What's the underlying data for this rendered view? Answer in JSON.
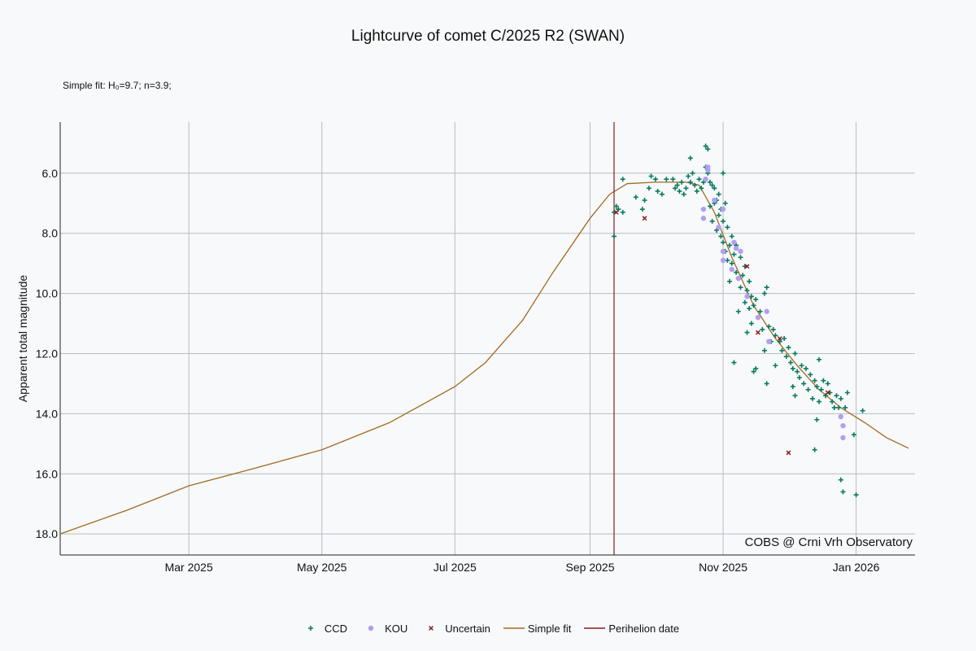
{
  "chart_data": {
    "type": "scatter",
    "title": "Lightcurve of comet C/2025 R2 (SWAN)",
    "annotation_top": "Simple fit: H₀=9.7; n=3.9;",
    "annotation_bottom_right": "COBS @ Crni Vrh Observatory",
    "ylabel": "Apparent total magnitude",
    "xlabel": "",
    "y_inverted": true,
    "ylim": [
      18.7,
      4.3
    ],
    "xlim": [
      "2025-01-01",
      "2026-01-28"
    ],
    "y_ticks": [
      6,
      8,
      10,
      12,
      14,
      16,
      18
    ],
    "y_tick_labels": [
      "6.0",
      "8.0",
      "10.0",
      "12.0",
      "14.0",
      "16.0",
      "18.0"
    ],
    "x_ticks": [
      "2025-03-01",
      "2025-05-01",
      "2025-07-01",
      "2025-09-01",
      "2025-11-01",
      "2026-01-01"
    ],
    "x_tick_labels": [
      "Mar 2025",
      "May 2025",
      "Jul 2025",
      "Sep 2025",
      "Nov 2025",
      "Jan 2026"
    ],
    "grid": true,
    "perihelion_date": "2025-09-12",
    "series": [
      {
        "name": "CCD",
        "marker": "plus",
        "color": "#0b7a5f",
        "points": [
          [
            "2025-09-12",
            7.3
          ],
          [
            "2025-09-12",
            8.1
          ],
          [
            "2025-09-13",
            7.1
          ],
          [
            "2025-09-14",
            7.2
          ],
          [
            "2025-09-16",
            7.3
          ],
          [
            "2025-09-16",
            6.2
          ],
          [
            "2025-09-22",
            6.8
          ],
          [
            "2025-09-25",
            7.2
          ],
          [
            "2025-09-26",
            6.9
          ],
          [
            "2025-09-28",
            6.5
          ],
          [
            "2025-09-29",
            6.1
          ],
          [
            "2025-10-01",
            6.2
          ],
          [
            "2025-10-02",
            6.6
          ],
          [
            "2025-10-04",
            6.7
          ],
          [
            "2025-10-06",
            6.2
          ],
          [
            "2025-10-09",
            6.2
          ],
          [
            "2025-10-10",
            6.5
          ],
          [
            "2025-10-11",
            6.4
          ],
          [
            "2025-10-12",
            6.6
          ],
          [
            "2025-10-13",
            6.3
          ],
          [
            "2025-10-14",
            6.7
          ],
          [
            "2025-10-15",
            6.5
          ],
          [
            "2025-10-16",
            6.1
          ],
          [
            "2025-10-17",
            6.3
          ],
          [
            "2025-10-17",
            5.5
          ],
          [
            "2025-10-18",
            6.0
          ],
          [
            "2025-10-19",
            6.4
          ],
          [
            "2025-10-20",
            6.6
          ],
          [
            "2025-10-21",
            6.2
          ],
          [
            "2025-10-22",
            6.5
          ],
          [
            "2025-10-23",
            6.3
          ],
          [
            "2025-10-24",
            5.8
          ],
          [
            "2025-10-24",
            5.1
          ],
          [
            "2025-10-25",
            5.2
          ],
          [
            "2025-10-25",
            6.0
          ],
          [
            "2025-10-26",
            6.3
          ],
          [
            "2025-10-26",
            7.1
          ],
          [
            "2025-10-27",
            6.4
          ],
          [
            "2025-10-27",
            7.6
          ],
          [
            "2025-10-28",
            6.5
          ],
          [
            "2025-10-28",
            7.0
          ],
          [
            "2025-10-29",
            7.9
          ],
          [
            "2025-10-29",
            6.9
          ],
          [
            "2025-10-30",
            7.4
          ],
          [
            "2025-10-30",
            6.7
          ],
          [
            "2025-10-31",
            7.2
          ],
          [
            "2025-10-31",
            8.1
          ],
          [
            "2025-11-01",
            6.0
          ],
          [
            "2025-11-01",
            7.6
          ],
          [
            "2025-11-01",
            8.3
          ],
          [
            "2025-11-02",
            7.0
          ],
          [
            "2025-11-02",
            8.6
          ],
          [
            "2025-11-03",
            7.8
          ],
          [
            "2025-11-03",
            8.9
          ],
          [
            "2025-11-04",
            8.4
          ],
          [
            "2025-11-04",
            9.6
          ],
          [
            "2025-11-05",
            9.0
          ],
          [
            "2025-11-05",
            8.1
          ],
          [
            "2025-11-06",
            8.7
          ],
          [
            "2025-11-06",
            12.3
          ],
          [
            "2025-11-07",
            9.3
          ],
          [
            "2025-11-07",
            8.4
          ],
          [
            "2025-11-08",
            9.5
          ],
          [
            "2025-11-08",
            10.6
          ],
          [
            "2025-11-09",
            8.8
          ],
          [
            "2025-11-09",
            9.8
          ],
          [
            "2025-11-10",
            9.4
          ],
          [
            "2025-11-11",
            9.1
          ],
          [
            "2025-11-11",
            10.3
          ],
          [
            "2025-11-12",
            9.9
          ],
          [
            "2025-11-12",
            11.3
          ],
          [
            "2025-11-13",
            10.5
          ],
          [
            "2025-11-13",
            9.6
          ],
          [
            "2025-11-14",
            10.1
          ],
          [
            "2025-11-14",
            11.0
          ],
          [
            "2025-11-15",
            10.4
          ],
          [
            "2025-11-15",
            12.6
          ],
          [
            "2025-11-16",
            10.2
          ],
          [
            "2025-11-16",
            12.5
          ],
          [
            "2025-11-17",
            10.8
          ],
          [
            "2025-11-18",
            10.6
          ],
          [
            "2025-11-19",
            11.2
          ],
          [
            "2025-11-20",
            10.0
          ],
          [
            "2025-11-20",
            11.9
          ],
          [
            "2025-11-21",
            9.8
          ],
          [
            "2025-11-21",
            13.0
          ],
          [
            "2025-11-22",
            11.1
          ],
          [
            "2025-11-23",
            11.6
          ],
          [
            "2025-11-24",
            11.2
          ],
          [
            "2025-11-25",
            11.4
          ],
          [
            "2025-11-25",
            12.4
          ],
          [
            "2025-11-27",
            11.6
          ],
          [
            "2025-11-28",
            11.9
          ],
          [
            "2025-11-29",
            11.5
          ],
          [
            "2025-11-30",
            12.1
          ],
          [
            "2025-12-01",
            11.8
          ],
          [
            "2025-12-02",
            12.3
          ],
          [
            "2025-12-03",
            12.5
          ],
          [
            "2025-12-03",
            13.1
          ],
          [
            "2025-12-04",
            12.0
          ],
          [
            "2025-12-04",
            13.4
          ],
          [
            "2025-12-05",
            12.6
          ],
          [
            "2025-12-06",
            12.8
          ],
          [
            "2025-12-07",
            12.4
          ],
          [
            "2025-12-08",
            13.0
          ],
          [
            "2025-12-09",
            12.5
          ],
          [
            "2025-12-10",
            13.2
          ],
          [
            "2025-12-11",
            12.7
          ],
          [
            "2025-12-12",
            13.5
          ],
          [
            "2025-12-13",
            12.9
          ],
          [
            "2025-12-13",
            15.2
          ],
          [
            "2025-12-14",
            13.1
          ],
          [
            "2025-12-14",
            14.2
          ],
          [
            "2025-12-15",
            12.2
          ],
          [
            "2025-12-15",
            13.6
          ],
          [
            "2025-12-16",
            13.2
          ],
          [
            "2025-12-17",
            12.9
          ],
          [
            "2025-12-18",
            13.4
          ],
          [
            "2025-12-19",
            13.0
          ],
          [
            "2025-12-20",
            13.3
          ],
          [
            "2025-12-21",
            13.6
          ],
          [
            "2025-12-22",
            13.8
          ],
          [
            "2025-12-23",
            13.4
          ],
          [
            "2025-12-24",
            13.8
          ],
          [
            "2025-12-25",
            13.5
          ],
          [
            "2025-12-25",
            16.2
          ],
          [
            "2025-12-26",
            16.6
          ],
          [
            "2025-12-27",
            13.8
          ],
          [
            "2025-12-28",
            13.3
          ],
          [
            "2025-12-31",
            14.7
          ],
          [
            "2026-01-01",
            16.7
          ],
          [
            "2026-01-04",
            13.9
          ]
        ]
      },
      {
        "name": "KOU",
        "marker": "circle",
        "color": "#b39ef2",
        "points": [
          [
            "2025-10-23",
            7.2
          ],
          [
            "2025-10-23",
            7.5
          ],
          [
            "2025-10-24",
            6.2
          ],
          [
            "2025-10-25",
            5.8
          ],
          [
            "2025-10-25",
            5.9
          ],
          [
            "2025-10-28",
            6.9
          ],
          [
            "2025-10-30",
            7.8
          ],
          [
            "2025-11-01",
            8.6
          ],
          [
            "2025-11-01",
            8.9
          ],
          [
            "2025-11-01",
            7.2
          ],
          [
            "2025-11-05",
            9.2
          ],
          [
            "2025-11-06",
            8.3
          ],
          [
            "2025-11-07",
            8.5
          ],
          [
            "2025-11-08",
            9.5
          ],
          [
            "2025-11-09",
            8.6
          ],
          [
            "2025-11-12",
            10.1
          ],
          [
            "2025-11-17",
            10.8
          ],
          [
            "2025-11-21",
            10.6
          ],
          [
            "2025-11-22",
            11.6
          ],
          [
            "2025-12-25",
            14.1
          ],
          [
            "2025-12-26",
            14.4
          ],
          [
            "2025-12-26",
            14.8
          ]
        ]
      },
      {
        "name": "Uncertain",
        "marker": "x",
        "color": "#8b1c1c",
        "points": [
          [
            "2025-09-13",
            7.3
          ],
          [
            "2025-09-26",
            7.5
          ],
          [
            "2025-11-12",
            9.1
          ],
          [
            "2025-11-17",
            11.3
          ],
          [
            "2025-11-27",
            11.5
          ],
          [
            "2025-12-01",
            15.3
          ],
          [
            "2025-12-19",
            13.3
          ]
        ]
      },
      {
        "name": "Simple fit",
        "type": "line",
        "color": "#a36a1f",
        "points": [
          [
            "2025-01-01",
            18.0
          ],
          [
            "2025-02-01",
            17.2
          ],
          [
            "2025-03-01",
            16.4
          ],
          [
            "2025-04-01",
            15.8
          ],
          [
            "2025-05-01",
            15.2
          ],
          [
            "2025-06-01",
            14.3
          ],
          [
            "2025-07-01",
            13.1
          ],
          [
            "2025-07-15",
            12.3
          ],
          [
            "2025-08-01",
            10.9
          ],
          [
            "2025-08-15",
            9.3
          ],
          [
            "2025-09-01",
            7.5
          ],
          [
            "2025-09-10",
            6.7
          ],
          [
            "2025-09-18",
            6.35
          ],
          [
            "2025-10-01",
            6.3
          ],
          [
            "2025-10-15",
            6.3
          ],
          [
            "2025-10-21",
            6.4
          ],
          [
            "2025-10-28",
            7.3
          ],
          [
            "2025-11-05",
            8.8
          ],
          [
            "2025-11-15",
            10.4
          ],
          [
            "2025-11-25",
            11.5
          ],
          [
            "2025-12-05",
            12.4
          ],
          [
            "2025-12-15",
            13.2
          ],
          [
            "2025-12-25",
            13.8
          ],
          [
            "2026-01-05",
            14.3
          ],
          [
            "2026-01-15",
            14.8
          ],
          [
            "2026-01-25",
            15.15
          ]
        ]
      }
    ],
    "legend": [
      {
        "label": "CCD",
        "marker": "plus",
        "color": "#0b7a5f"
      },
      {
        "label": "KOU",
        "marker": "circle",
        "color": "#b39ef2"
      },
      {
        "label": "Uncertain",
        "marker": "x",
        "color": "#8b1c1c"
      },
      {
        "label": "Simple fit",
        "marker": "line",
        "color": "#a36a1f"
      },
      {
        "label": "Perihelion date",
        "marker": "line",
        "color": "#8b1c1c"
      }
    ],
    "legend_position": "bottom-center"
  }
}
